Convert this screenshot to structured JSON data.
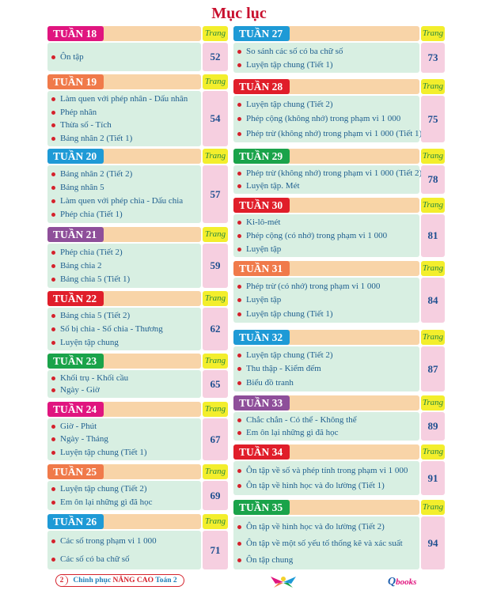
{
  "title": "Mục lục",
  "page_label": "Trang",
  "colors": {
    "magenta": "#e0157f",
    "orange": "#f07a4a",
    "blue": "#1e9ad6",
    "purple": "#8e4f9a",
    "red": "#e01e2a",
    "green": "#1aa34a"
  },
  "left": [
    {
      "week": "TUẦN 18",
      "color": "magenta",
      "page": "52",
      "items": [
        "Ôn tập"
      ]
    },
    {
      "week": "TUẦN 19",
      "color": "orange",
      "page": "54",
      "items": [
        "Làm quen với phép nhân - Dấu nhân",
        "Phép nhân",
        "Thừa số - Tích",
        "Bảng nhân 2 (Tiết 1)"
      ]
    },
    {
      "week": "TUẦN 20",
      "color": "blue",
      "page": "57",
      "items": [
        "Bảng nhân 2 (Tiết 2)",
        "Bảng nhân 5",
        "Làm quen với phép chia - Dấu chia",
        "Phép chia (Tiết 1)"
      ]
    },
    {
      "week": "TUẦN 21",
      "color": "purple",
      "page": "59",
      "items": [
        "Phép chia (Tiết 2)",
        "Bảng chia 2",
        "Bảng chia 5 (Tiết 1)"
      ]
    },
    {
      "week": "TUẦN 22",
      "color": "red",
      "page": "62",
      "items": [
        "Bảng chia 5 (Tiết 2)",
        "Số bị chia - Số chia - Thương",
        "Luyện tập chung"
      ]
    },
    {
      "week": "TUẦN 23",
      "color": "green",
      "page": "65",
      "items": [
        "Khối trụ - Khối cầu",
        "Ngày - Giờ"
      ]
    },
    {
      "week": "TUẦN 24",
      "color": "magenta",
      "page": "67",
      "items": [
        "Giờ - Phút",
        "Ngày - Tháng",
        "Luyện tập chung (Tiết 1)"
      ]
    },
    {
      "week": "TUẦN 25",
      "color": "orange",
      "page": "69",
      "items": [
        "Luyện tập chung (Tiết 2)",
        "Em ôn lại những gì đã học"
      ]
    },
    {
      "week": "TUẦN 26",
      "color": "blue",
      "page": "71",
      "items": [
        "Các số trong phạm vi 1 000",
        "Các số có ba chữ số"
      ]
    }
  ],
  "right": [
    {
      "week": "TUẦN 27",
      "color": "blue",
      "page": "73",
      "items": [
        "So sánh các số có ba chữ số",
        "Luyện tập chung (Tiết 1)"
      ]
    },
    {
      "week": "TUẦN 28",
      "color": "red",
      "page": "75",
      "items": [
        "Luyện tập chung (Tiết 2)",
        "Phép cộng (không nhớ) trong phạm vi 1 000",
        "Phép trừ (không nhớ) trong phạm vi 1 000 (Tiết 1)"
      ]
    },
    {
      "week": "TUẦN 29",
      "color": "green",
      "page": "78",
      "items": [
        "Phép trừ (không nhớ) trong phạm vi 1 000 (Tiết 2)",
        "Luyện tập. Mét"
      ]
    },
    {
      "week": "TUẦN 30",
      "color": "red",
      "page": "81",
      "items": [
        "Ki-lô-mét",
        "Phép cộng (có nhớ) trong phạm vi 1 000",
        "Luyện tập"
      ]
    },
    {
      "week": "TUẦN 31",
      "color": "orange",
      "page": "84",
      "items": [
        "Phép trừ (có nhớ) trong phạm vi 1 000",
        "Luyện tập",
        "Luyện tập chung (Tiết 1)"
      ]
    },
    {
      "week": "TUẦN 32",
      "color": "blue",
      "page": "87",
      "items": [
        "Luyện tập chung (Tiết 2)",
        "Thu thập - Kiểm đếm",
        "Biểu đồ tranh"
      ]
    },
    {
      "week": "TUẦN 33",
      "color": "purple",
      "page": "89",
      "items": [
        "Chắc chắn - Có thể - Không thể",
        "Em ôn lại những gì đã học"
      ]
    },
    {
      "week": "TUẦN 34",
      "color": "red",
      "page": "91",
      "items": [
        "Ôn tập về số và phép tính trong phạm vi 1 000",
        "Ôn tập về hình học và đo lường (Tiết 1)"
      ]
    },
    {
      "week": "TUẦN 35",
      "color": "green",
      "page": "94",
      "items": [
        "Ôn tập về hình học và đo lường (Tiết 2)",
        "Ôn tập về một số yếu tố thống kê và xác suất",
        "Ôn tập chung"
      ]
    }
  ],
  "footer": {
    "page_number": "2",
    "series_prefix": "Chinh phục",
    "series_highlight": "NÂNG CAO",
    "series_suffix": "Toán 2",
    "publisher_logo": "Qbooks",
    "emblem": "wing-logo"
  }
}
